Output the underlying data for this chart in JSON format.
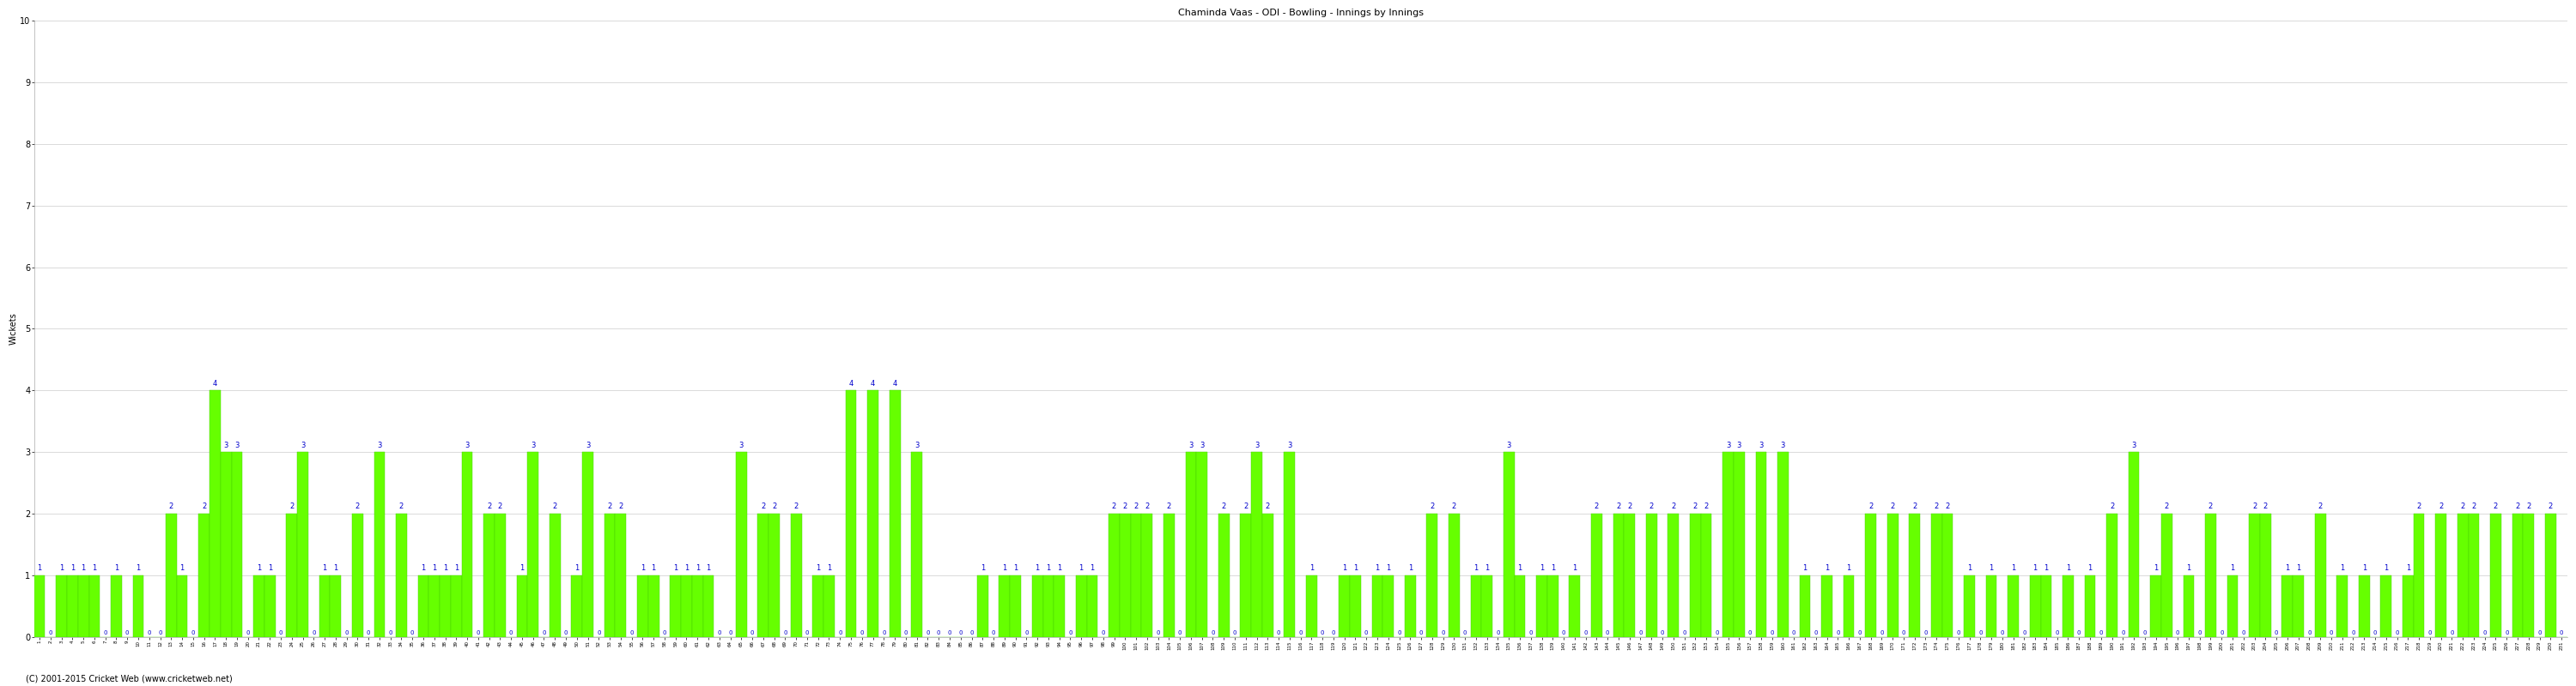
{
  "title": "Chaminda Vaas - ODI - Bowling - Innings by Innings",
  "ylabel": "Wickets",
  "ylim_max": 10,
  "yticks": [
    0,
    1,
    2,
    3,
    4,
    5,
    6,
    7,
    8,
    9,
    10
  ],
  "bar_color": "#66ff00",
  "bar_edge_color": "#44cc00",
  "background_color": "#ffffff",
  "grid_color": "#cccccc",
  "footer": "(C) 2001-2015 Cricket Web (www.cricketweb.net)",
  "wickets": [
    1,
    0,
    1,
    1,
    1,
    1,
    0,
    1,
    0,
    1,
    0,
    0,
    2,
    1,
    0,
    2,
    4,
    3,
    3,
    0,
    1,
    1,
    0,
    2,
    3,
    0,
    1,
    1,
    0,
    2,
    0,
    3,
    0,
    2,
    0,
    1,
    1,
    1,
    1,
    3,
    0,
    2,
    2,
    0,
    1,
    3,
    0,
    2,
    0,
    1,
    3,
    0,
    2,
    2,
    0,
    1,
    1,
    0,
    1,
    1,
    1,
    1,
    0,
    0,
    3,
    0,
    2,
    2,
    0,
    2,
    0,
    1,
    1,
    0,
    4,
    0,
    4,
    0,
    4,
    0,
    3,
    0,
    0,
    0,
    0,
    0,
    1,
    0,
    1,
    1,
    0,
    1,
    1,
    1,
    0,
    1,
    1,
    0,
    2,
    2,
    2,
    2,
    0,
    2,
    0,
    3,
    3,
    0,
    2,
    0,
    2,
    3,
    2,
    0,
    3,
    0,
    1,
    0,
    0,
    1,
    1,
    0,
    1,
    1,
    0,
    1,
    0,
    2,
    0,
    2,
    0,
    1,
    1,
    0,
    3,
    1,
    0,
    1,
    1,
    0,
    1,
    0,
    2,
    0,
    2,
    2,
    0,
    2,
    0,
    2,
    0,
    2,
    2,
    0,
    3,
    3,
    0,
    3,
    0,
    3,
    0,
    1,
    0,
    1,
    0,
    1,
    0,
    2,
    0,
    2,
    0,
    2,
    0,
    2,
    2,
    0,
    1,
    0,
    1,
    0,
    1,
    0,
    1,
    1,
    0,
    1,
    0,
    1,
    0,
    2,
    0,
    3,
    0,
    1,
    2,
    0,
    1,
    0,
    2,
    0,
    1,
    0,
    2,
    2,
    0,
    1,
    1,
    0,
    2,
    0,
    1,
    0,
    1,
    0,
    1,
    0,
    1,
    2,
    0,
    2,
    0,
    2,
    2,
    0,
    2,
    0,
    2,
    2,
    0,
    2,
    0
  ],
  "title_fontsize": 8,
  "ylabel_fontsize": 7,
  "ytick_fontsize": 7,
  "xtick_fontsize": 4,
  "value_fontsize": 6,
  "footer_fontsize": 7,
  "bar_width": 1.0,
  "value_label_color": "#0000cc"
}
